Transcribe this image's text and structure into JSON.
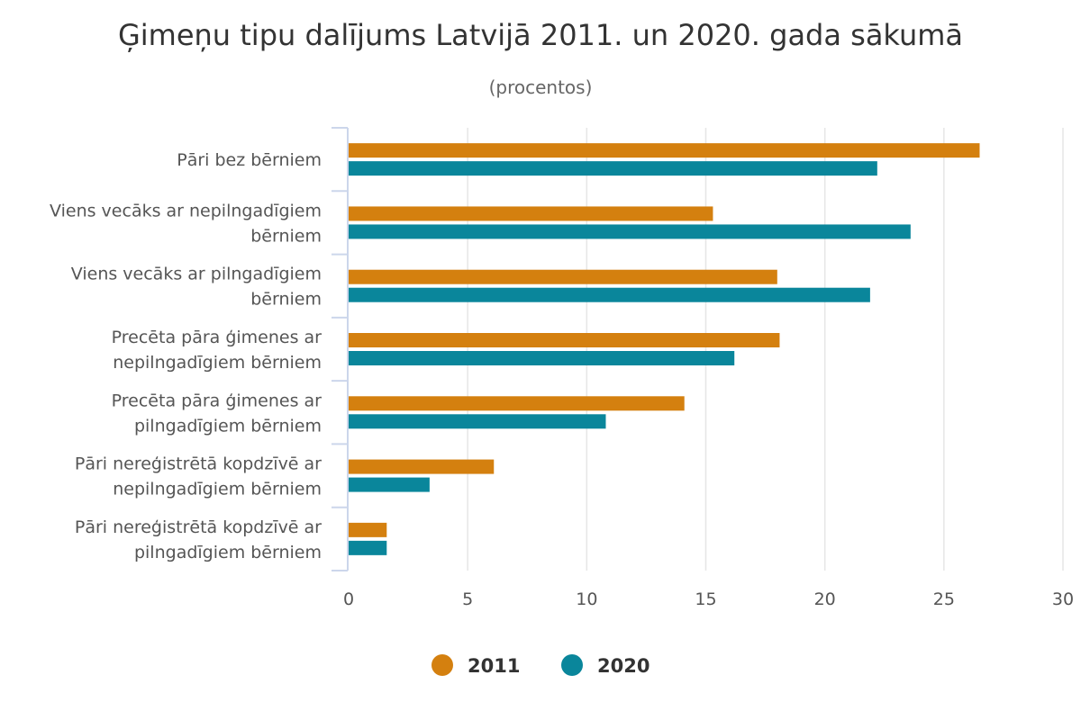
{
  "chart_data": {
    "type": "bar",
    "orientation": "horizontal",
    "title": "Ģimeņu tipu dalījums Latvijā 2011. un 2020. gada sākumā",
    "subtitle": "(procentos)",
    "categories": [
      [
        "Pāri bez bērniem"
      ],
      [
        "Viens vecāks ar nepilngadīgiem",
        "bērniem"
      ],
      [
        "Viens vecāks ar pilngadīgiem",
        "bērniem"
      ],
      [
        "Precēta pāra ģimenes ar",
        "nepilngadīgiem bērniem"
      ],
      [
        "Precēta pāra ģimenes ar",
        "pilngadīgiem bērniem"
      ],
      [
        "Pāri nereģistrētā kopdzīvē ar",
        "nepilngadīgiem bērniem"
      ],
      [
        "Pāri nereģistrētā kopdzīvē ar",
        "pilngadīgiem bērniem"
      ]
    ],
    "series": [
      {
        "name": "2011",
        "color": "#d4800f",
        "values": [
          26.5,
          15.3,
          18.0,
          18.1,
          14.1,
          6.1,
          1.6
        ]
      },
      {
        "name": "2020",
        "color": "#0a869b",
        "values": [
          22.2,
          23.6,
          21.9,
          16.2,
          10.8,
          3.4,
          1.6
        ]
      }
    ],
    "xlim": [
      0,
      30
    ],
    "xticks": [
      0,
      5,
      10,
      15,
      20,
      25,
      30
    ],
    "grid": true,
    "legend_position": "bottom-center"
  }
}
